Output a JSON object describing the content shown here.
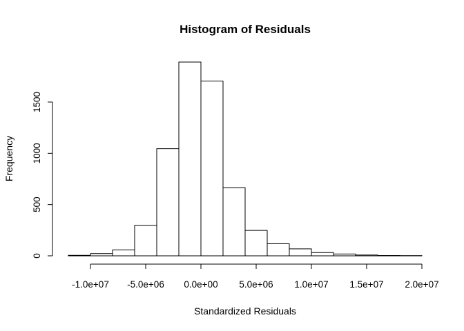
{
  "chart_data": {
    "type": "bar",
    "title": "Histogram of Residuals",
    "xlabel": "Standardized Residuals",
    "ylabel": "Frequency",
    "bin_edges": [
      -12000000,
      -10000000,
      -8000000,
      -6000000,
      -4000000,
      -2000000,
      0,
      2000000,
      4000000,
      6000000,
      8000000,
      10000000,
      12000000,
      14000000,
      16000000,
      18000000,
      20000000
    ],
    "values": [
      5,
      22,
      58,
      298,
      1045,
      1890,
      1705,
      665,
      248,
      118,
      68,
      32,
      18,
      8,
      3,
      2
    ],
    "xlim": [
      -12000000,
      20000000
    ],
    "ylim": [
      0,
      1890
    ],
    "x_ticks": [
      -10000000,
      -5000000,
      0,
      5000000,
      10000000,
      15000000,
      20000000
    ],
    "x_tick_labels": [
      "-1.0e+07",
      "-5.0e+06",
      "0.0e+00",
      "5.0e+06",
      "1.0e+07",
      "1.5e+07",
      "2.0e+07"
    ],
    "y_ticks": [
      0,
      500,
      1000,
      1500
    ],
    "y_tick_labels": [
      "0",
      "500",
      "1000",
      "1500"
    ],
    "grid": false,
    "legend": "none"
  }
}
